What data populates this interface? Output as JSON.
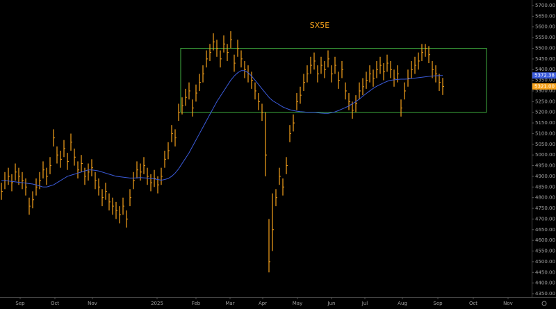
{
  "chart_data": {
    "type": "ohlc",
    "title": "SX5E",
    "xlim": [
      -0.4,
      152.6
    ],
    "ylim": [
      4350,
      5700
    ],
    "xticks": [
      {
        "value": 5.4,
        "label": "Sep"
      },
      {
        "value": 15.4,
        "label": "Oct"
      },
      {
        "value": 26.2,
        "label": "Nov"
      },
      {
        "value": 44.8,
        "label": "2025"
      },
      {
        "value": 56,
        "label": "Feb"
      },
      {
        "value": 65.8,
        "label": "Mar"
      },
      {
        "value": 75.2,
        "label": "Apr"
      },
      {
        "value": 85.2,
        "label": "May"
      },
      {
        "value": 95,
        "label": "Jun"
      },
      {
        "value": 104.6,
        "label": "Jul"
      },
      {
        "value": 115.4,
        "label": "Aug"
      },
      {
        "value": 125.6,
        "label": "Sep"
      },
      {
        "value": 135.8,
        "label": "Oct"
      },
      {
        "value": 145.8,
        "label": "Nov"
      }
    ],
    "yticks": [
      {
        "value": 4350,
        "label": "4350.00"
      },
      {
        "value": 4400,
        "label": "4400.00"
      },
      {
        "value": 4450,
        "label": "4450.00"
      },
      {
        "value": 4500,
        "label": "4500.00"
      },
      {
        "value": 4550,
        "label": "4550.00"
      },
      {
        "value": 4600,
        "label": "4600.00"
      },
      {
        "value": 4650,
        "label": "4650.00"
      },
      {
        "value": 4700,
        "label": "4700.00"
      },
      {
        "value": 4750,
        "label": "4750.00"
      },
      {
        "value": 4800,
        "label": "4800.00"
      },
      {
        "value": 4850,
        "label": "4850.00"
      },
      {
        "value": 4900,
        "label": "4900.00"
      },
      {
        "value": 4950,
        "label": "4950.00"
      },
      {
        "value": 5000,
        "label": "5000.00"
      },
      {
        "value": 5050,
        "label": "5050.00"
      },
      {
        "value": 5100,
        "label": "5100.00"
      },
      {
        "value": 5150,
        "label": "5150.00"
      },
      {
        "value": 5200,
        "label": "5200.00"
      },
      {
        "value": 5250,
        "label": "5250.00"
      },
      {
        "value": 5300,
        "label": "5300.00"
      },
      {
        "value": 5350,
        "label": "5350.00"
      },
      {
        "value": 5400,
        "label": "5400.00"
      },
      {
        "value": 5450,
        "label": "5450.00"
      },
      {
        "value": 5500,
        "label": "5500.00"
      },
      {
        "value": 5550,
        "label": "5550.00"
      },
      {
        "value": 5600,
        "label": "5600.00"
      },
      {
        "value": 5650,
        "label": "5650.00"
      },
      {
        "value": 5700,
        "label": "5700.00"
      }
    ],
    "box": {
      "x": [
        51.6,
        139.6
      ],
      "y": [
        5200,
        5500
      ],
      "color": "#3fae3f"
    },
    "series": [
      {
        "type": "ohlc",
        "color": "#f7a21b",
        "value_label": "5321.00",
        "values": [
          4830,
          4880,
          4900,
          4870,
          4920,
          4900,
          4880,
          4850,
          4760,
          4790,
          4850,
          4880,
          4930,
          4900,
          4950,
          5080,
          5000,
          4980,
          5030,
          4970,
          5060,
          4990,
          4930,
          4960,
          4900,
          4920,
          4940,
          4880,
          4850,
          4800,
          4830,
          4780,
          4760,
          4740,
          4720,
          4760,
          4700,
          4800,
          4880,
          4930,
          4920,
          4950,
          4900,
          4870,
          4890,
          4860,
          4900,
          4980,
          5020,
          5100,
          5080,
          5200,
          5230,
          5270,
          5300,
          5220,
          5290,
          5340,
          5380,
          5450,
          5480,
          5530,
          5500,
          5450,
          5520,
          5480,
          5540,
          5430,
          5500,
          5450,
          5400,
          5380,
          5350,
          5300,
          5250,
          5200,
          5000,
          4500,
          4650,
          4800,
          4900,
          4850,
          4950,
          5100,
          5150,
          5250,
          5280,
          5340,
          5380,
          5420,
          5440,
          5380,
          5420,
          5400,
          5450,
          5380,
          5420,
          5350,
          5400,
          5300,
          5250,
          5210,
          5240,
          5300,
          5320,
          5350,
          5380,
          5360,
          5400,
          5420,
          5390,
          5430,
          5400,
          5360,
          5380,
          5220,
          5300,
          5360,
          5400,
          5420,
          5440,
          5480,
          5500,
          5470,
          5400,
          5380,
          5340,
          5321
        ],
        "high": [
          4870,
          4920,
          4940,
          4910,
          4960,
          4940,
          4920,
          4890,
          4800,
          4830,
          4890,
          4920,
          4970,
          4940,
          4990,
          5120,
          5040,
          5020,
          5070,
          5010,
          5100,
          5030,
          4970,
          5000,
          4940,
          4960,
          4980,
          4920,
          4890,
          4840,
          4870,
          4820,
          4800,
          4780,
          4760,
          4800,
          4740,
          4840,
          4920,
          4970,
          4960,
          4990,
          4940,
          4910,
          4930,
          4900,
          4940,
          5020,
          5060,
          5140,
          5120,
          5240,
          5270,
          5310,
          5340,
          5260,
          5330,
          5380,
          5420,
          5490,
          5520,
          5570,
          5540,
          5490,
          5560,
          5520,
          5580,
          5470,
          5540,
          5490,
          5440,
          5420,
          5390,
          5340,
          5290,
          5240,
          5200,
          4700,
          4820,
          4840,
          4940,
          4890,
          4990,
          5140,
          5190,
          5290,
          5320,
          5380,
          5420,
          5460,
          5480,
          5420,
          5460,
          5440,
          5490,
          5420,
          5460,
          5390,
          5440,
          5340,
          5290,
          5250,
          5280,
          5340,
          5360,
          5390,
          5420,
          5400,
          5440,
          5460,
          5430,
          5470,
          5440,
          5400,
          5420,
          5260,
          5340,
          5400,
          5440,
          5460,
          5480,
          5520,
          5520,
          5510,
          5440,
          5420,
          5380,
          5361
        ],
        "low": [
          4790,
          4840,
          4860,
          4830,
          4880,
          4860,
          4840,
          4810,
          4720,
          4750,
          4810,
          4840,
          4890,
          4860,
          4910,
          5040,
          4960,
          4940,
          4990,
          4930,
          5020,
          4950,
          4890,
          4920,
          4860,
          4880,
          4900,
          4840,
          4810,
          4760,
          4790,
          4740,
          4720,
          4700,
          4680,
          4720,
          4660,
          4760,
          4840,
          4890,
          4880,
          4910,
          4860,
          4830,
          4850,
          4820,
          4860,
          4940,
          4980,
          5060,
          5040,
          5160,
          5190,
          5230,
          5260,
          5180,
          5250,
          5300,
          5340,
          5410,
          5440,
          5490,
          5460,
          5410,
          5480,
          5440,
          5500,
          5390,
          5460,
          5410,
          5360,
          5340,
          5310,
          5260,
          5210,
          5160,
          4900,
          4450,
          4550,
          4760,
          4860,
          4810,
          4910,
          5060,
          5110,
          5210,
          5240,
          5300,
          5340,
          5380,
          5400,
          5340,
          5380,
          5360,
          5410,
          5340,
          5380,
          5310,
          5360,
          5260,
          5210,
          5170,
          5200,
          5260,
          5280,
          5310,
          5340,
          5320,
          5360,
          5380,
          5350,
          5390,
          5360,
          5320,
          5340,
          5180,
          5260,
          5320,
          5360,
          5380,
          5400,
          5440,
          5460,
          5430,
          5360,
          5340,
          5300,
          5281
        ]
      },
      {
        "type": "line",
        "color": "#3b5bdb",
        "value_label": "5372.38",
        "values": [
          4880,
          4880,
          4878,
          4876,
          4874,
          4872,
          4870,
          4868,
          4866,
          4864,
          4860,
          4855,
          4850,
          4850,
          4855,
          4860,
          4870,
          4880,
          4890,
          4900,
          4905,
          4910,
          4915,
          4920,
          4925,
          4930,
          4930,
          4928,
          4925,
          4920,
          4915,
          4910,
          4905,
          4900,
          4898,
          4896,
          4894,
          4892,
          4892,
          4893,
          4894,
          4893,
          4892,
          4890,
          4888,
          4885,
          4882,
          4885,
          4890,
          4900,
          4915,
          4935,
          4960,
          4985,
          5010,
          5040,
          5070,
          5100,
          5130,
          5160,
          5190,
          5220,
          5250,
          5275,
          5300,
          5325,
          5350,
          5370,
          5385,
          5395,
          5395,
          5385,
          5370,
          5350,
          5330,
          5310,
          5290,
          5270,
          5255,
          5245,
          5235,
          5225,
          5218,
          5212,
          5208,
          5205,
          5203,
          5202,
          5200,
          5200,
          5200,
          5198,
          5196,
          5195,
          5195,
          5198,
          5202,
          5208,
          5215,
          5222,
          5230,
          5240,
          5250,
          5262,
          5275,
          5288,
          5300,
          5312,
          5322,
          5330,
          5338,
          5345,
          5350,
          5352,
          5354,
          5355,
          5355,
          5356,
          5358,
          5360,
          5362,
          5364,
          5366,
          5368,
          5370,
          5371,
          5372,
          5372.38
        ]
      }
    ]
  }
}
